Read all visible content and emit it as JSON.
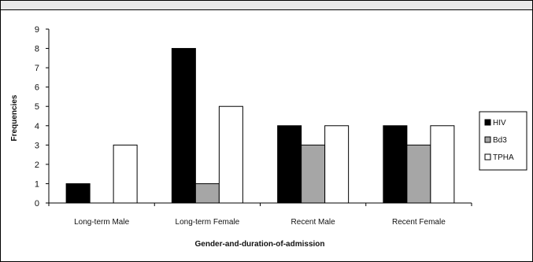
{
  "chart_data": {
    "type": "bar",
    "title": "",
    "xlabel": "Gender-and-duration-of-admission",
    "ylabel": "Frequencies",
    "ylim": [
      0,
      9
    ],
    "yticks": [
      0,
      1,
      2,
      3,
      4,
      5,
      6,
      7,
      8,
      9
    ],
    "grid": false,
    "legend_position": "right",
    "categories": [
      "Long-term Male",
      "Long-term Female",
      "Recent Male",
      "Recent Female"
    ],
    "series": [
      {
        "name": "HIV",
        "color": "#000000",
        "values": [
          1,
          8,
          4,
          4
        ]
      },
      {
        "name": "Bd3",
        "color": "#a6a6a6",
        "values": [
          0,
          1,
          3,
          3
        ]
      },
      {
        "name": "TPHA",
        "color": "#ffffff",
        "values": [
          3,
          5,
          4,
          4
        ]
      }
    ]
  }
}
